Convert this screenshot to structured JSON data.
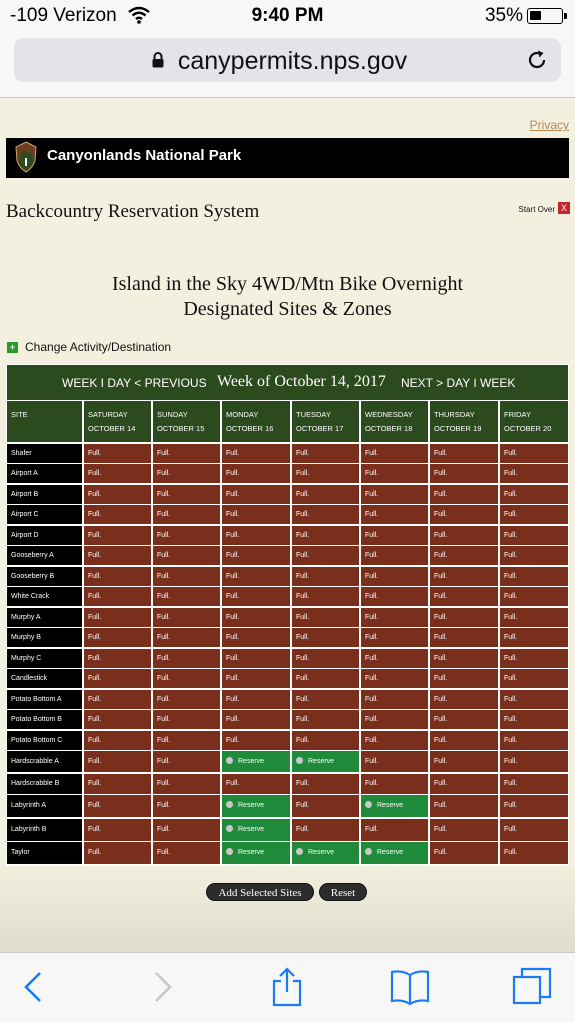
{
  "status_bar": {
    "carrier": "-109 Verizon",
    "time": "9:40 PM",
    "battery": "35%",
    "battery_level": 0.35
  },
  "browser": {
    "url": "canypermits.nps.gov"
  },
  "page": {
    "privacy_link": "Privacy",
    "park_name": "Canyonlands National Park",
    "system_title": "Backcountry Reservation System",
    "start_over": "Start Over",
    "start_over_x": "X",
    "heading_line1": "Island in the Sky 4WD/Mtn Bike Overnight",
    "heading_line2": "Designated Sites & Zones",
    "change_icon": "+",
    "change_link": "Change Activity/Destination"
  },
  "grid": {
    "nav_prev": "WEEK I DAY < PREVIOUS",
    "nav_week": "Week of October 14, 2017",
    "nav_next": "NEXT > DAY I WEEK",
    "site_header": "SITE",
    "days": [
      {
        "day": "SATURDAY",
        "date": "OCTOBER 14"
      },
      {
        "day": "SUNDAY",
        "date": "OCTOBER 15"
      },
      {
        "day": "MONDAY",
        "date": "OCTOBER 16"
      },
      {
        "day": "TUESDAY",
        "date": "OCTOBER 17"
      },
      {
        "day": "WEDNESDAY",
        "date": "OCTOBER 18"
      },
      {
        "day": "THURSDAY",
        "date": "OCTOBER 19"
      },
      {
        "day": "FRIDAY",
        "date": "OCTOBER 20"
      }
    ],
    "full_label": "Full.",
    "reserve_label": "Reserve",
    "rows": [
      {
        "site": "Shafer",
        "status": [
          "F",
          "F",
          "F",
          "F",
          "F",
          "F",
          "F"
        ]
      },
      {
        "site": "Airport A",
        "status": [
          "F",
          "F",
          "F",
          "F",
          "F",
          "F",
          "F"
        ]
      },
      {
        "site": "Airport B",
        "status": [
          "F",
          "F",
          "F",
          "F",
          "F",
          "F",
          "F"
        ]
      },
      {
        "site": "Airport C",
        "status": [
          "F",
          "F",
          "F",
          "F",
          "F",
          "F",
          "F"
        ]
      },
      {
        "site": "Airport D",
        "status": [
          "F",
          "F",
          "F",
          "F",
          "F",
          "F",
          "F"
        ]
      },
      {
        "site": "Gooseberry A",
        "status": [
          "F",
          "F",
          "F",
          "F",
          "F",
          "F",
          "F"
        ]
      },
      {
        "site": "Gooseberry B",
        "status": [
          "F",
          "F",
          "F",
          "F",
          "F",
          "F",
          "F"
        ]
      },
      {
        "site": "White Crack",
        "status": [
          "F",
          "F",
          "F",
          "F",
          "F",
          "F",
          "F"
        ]
      },
      {
        "site": "Murphy A",
        "status": [
          "F",
          "F",
          "F",
          "F",
          "F",
          "F",
          "F"
        ]
      },
      {
        "site": "Murphy B",
        "status": [
          "F",
          "F",
          "F",
          "F",
          "F",
          "F",
          "F"
        ]
      },
      {
        "site": "Murphy C",
        "status": [
          "F",
          "F",
          "F",
          "F",
          "F",
          "F",
          "F"
        ]
      },
      {
        "site": "Candlestick",
        "status": [
          "F",
          "F",
          "F",
          "F",
          "F",
          "F",
          "F"
        ]
      },
      {
        "site": "Potato Bottom A",
        "status": [
          "F",
          "F",
          "F",
          "F",
          "F",
          "F",
          "F"
        ]
      },
      {
        "site": "Potato Bottom B",
        "status": [
          "F",
          "F",
          "F",
          "F",
          "F",
          "F",
          "F"
        ]
      },
      {
        "site": "Potato Bottom C",
        "status": [
          "F",
          "F",
          "F",
          "F",
          "F",
          "F",
          "F"
        ]
      },
      {
        "site": "Hardscrabble A",
        "status": [
          "F",
          "F",
          "R",
          "R",
          "F",
          "F",
          "F"
        ]
      },
      {
        "site": "Hardscrabble B",
        "status": [
          "F",
          "F",
          "F",
          "F",
          "F",
          "F",
          "F"
        ]
      },
      {
        "site": "Labyrinth A",
        "status": [
          "F",
          "F",
          "R",
          "F",
          "R",
          "F",
          "F"
        ]
      },
      {
        "site": "Labyrinth B",
        "status": [
          "F",
          "F",
          "R",
          "F",
          "F",
          "F",
          "F"
        ]
      },
      {
        "site": "Taylor",
        "status": [
          "F",
          "F",
          "R",
          "R",
          "R",
          "F",
          "F"
        ]
      }
    ]
  },
  "buttons": {
    "add_selected": "Add Selected Sites",
    "reset": "Reset"
  },
  "colors": {
    "full": "#7a2e1c",
    "available": "#1e8a3a",
    "header": "#2b4a1d",
    "site": "#000000"
  },
  "toolbar_icons": [
    "back-icon",
    "forward-icon",
    "share-icon",
    "bookmarks-icon",
    "tabs-icon"
  ]
}
